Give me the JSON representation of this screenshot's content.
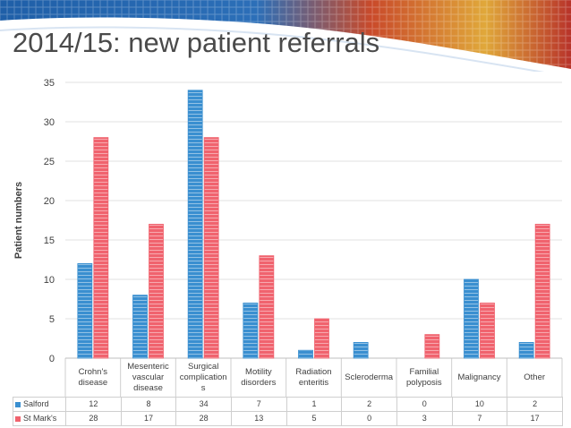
{
  "slide": {
    "title": "2014/15: new patient referrals"
  },
  "colors": {
    "salford": "#3a8fd0",
    "st_marks": "#f0636e",
    "grid": "#e2e2e2",
    "text": "#404040"
  },
  "chart_data": {
    "type": "bar",
    "title": "",
    "xlabel": "",
    "ylabel": "Patient numbers",
    "ylim": [
      0,
      35
    ],
    "yticks": [
      "0",
      "5",
      "10",
      "15",
      "20",
      "25",
      "30",
      "35"
    ],
    "grid": true,
    "legend": "data-table-below",
    "categories": [
      [
        "Crohn's",
        "disease"
      ],
      [
        "Mesenteric",
        "vascular",
        "disease"
      ],
      [
        "Surgical",
        "complication",
        "s"
      ],
      [
        "Motility",
        "disorders"
      ],
      [
        "Radiation",
        "enteritis"
      ],
      [
        "Scleroderma"
      ],
      [
        "Familial",
        "polyposis"
      ],
      [
        "Malignancy"
      ],
      [
        "Other"
      ]
    ],
    "series": [
      {
        "name": "Salford",
        "values": [
          12,
          8,
          34,
          7,
          1,
          2,
          0,
          10,
          2
        ]
      },
      {
        "name": "St Mark's",
        "values": [
          28,
          17,
          28,
          13,
          5,
          0,
          3,
          7,
          17
        ]
      }
    ]
  }
}
